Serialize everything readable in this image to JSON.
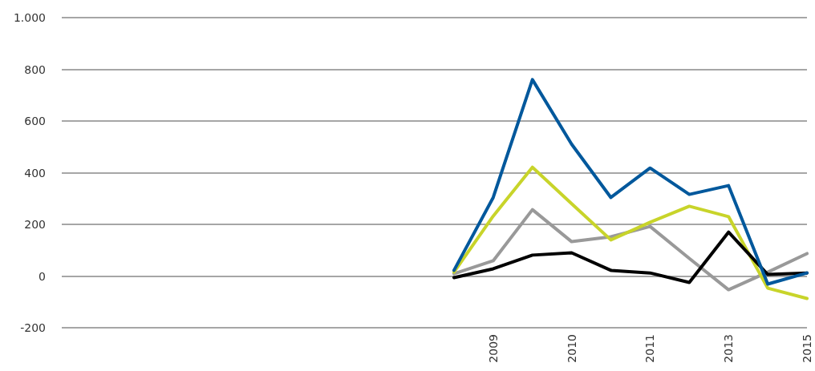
{
  "chart_data": {
    "type": "line",
    "categories": [
      null,
      null,
      null,
      null,
      null,
      null,
      null,
      null,
      null,
      null,
      null,
      "2009",
      null,
      "2010",
      null,
      "2011",
      null,
      "2013",
      null,
      "2015"
    ],
    "series": [
      {
        "color": "#999999",
        "values": [
          null,
          null,
          null,
          null,
          null,
          null,
          null,
          null,
          null,
          null,
          9,
          59,
          257,
          133,
          152,
          192,
          68,
          -53,
          15,
          87
        ]
      },
      {
        "color": "#c8d42a",
        "values": [
          null,
          null,
          null,
          null,
          null,
          null,
          null,
          null,
          null,
          null,
          15,
          232,
          421,
          280,
          140,
          208,
          270,
          230,
          -47,
          -87
        ]
      },
      {
        "color": "#000000",
        "values": [
          null,
          null,
          null,
          null,
          null,
          null,
          null,
          null,
          null,
          null,
          -6,
          28,
          81,
          90,
          22,
          12,
          -25,
          170,
          6,
          12
        ]
      },
      {
        "color": "#00589c",
        "values": [
          null,
          null,
          null,
          null,
          null,
          null,
          null,
          null,
          null,
          null,
          22,
          304,
          760,
          510,
          304,
          418,
          316,
          350,
          -31,
          12
        ]
      }
    ],
    "ylim": [
      -200,
      1000
    ],
    "yticks": [
      -200,
      0,
      200,
      400,
      600,
      800,
      {
        "value": 1000,
        "label": "1.000"
      }
    ],
    "grid": "y",
    "marker": "none",
    "line_style": "solid"
  }
}
